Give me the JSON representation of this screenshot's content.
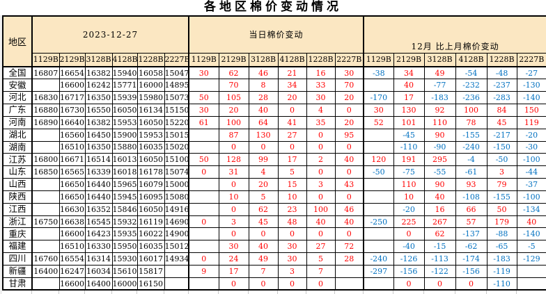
{
  "title": "各地区棉价变动情况",
  "header": {
    "region_label": "地区",
    "groups": [
      "2023-12-27",
      "当日棉价变动",
      "12月 比上月棉价变动"
    ],
    "grades": [
      "1129B",
      "2129B",
      "3128B",
      "4128B",
      "1228B",
      "2227B"
    ]
  },
  "colors": {
    "header_bg": "#fbe7c2",
    "positive": "#ff0000",
    "negative": "#0070c0",
    "border": "#000000"
  },
  "rows": [
    {
      "region": "全国",
      "price": [
        "16807",
        "16654",
        "16382",
        "15940",
        "16058",
        "15047"
      ],
      "daily": [
        "30",
        "62",
        "46",
        "21",
        "16",
        "30"
      ],
      "monthly": [
        "-38",
        "34",
        "49",
        "-54",
        "-48",
        "-27"
      ]
    },
    {
      "region": "安徽",
      "price": [
        "",
        "16600",
        "16242",
        "15771",
        "16000",
        "14895"
      ],
      "daily": [
        "",
        "70",
        "8",
        "34",
        "33",
        "70"
      ],
      "monthly": [
        "",
        "40",
        "-77",
        "-232",
        "-237",
        "-130"
      ]
    },
    {
      "region": "河北",
      "price": [
        "16830",
        "16717",
        "16350",
        "15939",
        "15980",
        "15073"
      ],
      "daily": [
        "50",
        "105",
        "28",
        "20",
        "30",
        "20"
      ],
      "monthly": [
        "-170",
        "17",
        "-183",
        "-236",
        "-283",
        "-140"
      ]
    },
    {
      "region": "广东",
      "price": [
        "16880",
        "16730",
        "16550",
        "16050",
        "16134",
        "15150"
      ],
      "daily": [
        "30",
        "20",
        "40",
        "0",
        "4",
        "0"
      ],
      "monthly": [
        "30",
        "130",
        "92",
        "100",
        "84",
        "150"
      ]
    },
    {
      "region": "河南",
      "price": [
        "16890",
        "16640",
        "16382",
        "15953",
        "16050",
        "15220"
      ],
      "daily": [
        "61",
        "100",
        "64",
        "41",
        "35",
        "20"
      ],
      "monthly": [
        "52",
        "101",
        "110",
        "78",
        "45",
        "119"
      ]
    },
    {
      "region": "湖北",
      "price": [
        "",
        "16560",
        "16450",
        "15900",
        "15953",
        "15015"
      ],
      "daily": [
        "",
        "87",
        "130",
        "27",
        "0",
        "95"
      ],
      "monthly": [
        "",
        "-45",
        "90",
        "-155",
        "-217",
        "-20"
      ]
    },
    {
      "region": "湖南",
      "price": [
        "",
        "16510",
        "16350",
        "15880",
        "16035",
        "15020"
      ],
      "daily": [
        "",
        "0",
        "0",
        "0",
        "0",
        "0"
      ],
      "monthly": [
        "",
        "-110",
        "-90",
        "-240",
        "-150",
        "-30"
      ]
    },
    {
      "region": "江苏",
      "price": [
        "16800",
        "16671",
        "16514",
        "16013",
        "16050",
        "15100"
      ],
      "daily": [
        "50",
        "128",
        "99",
        "17",
        "2",
        "40"
      ],
      "monthly": [
        "120",
        "191",
        "295",
        "-4",
        "-50",
        "-100"
      ]
    },
    {
      "region": "山东",
      "price": [
        "16850",
        "16565",
        "16339",
        "16018",
        "16178",
        "15074"
      ],
      "daily": [
        "0",
        "31",
        "4",
        "5",
        "0",
        "0"
      ],
      "monthly": [
        "-50",
        "-75",
        "-55",
        "-61",
        "3",
        "-44"
      ]
    },
    {
      "region": "山西",
      "price": [
        "",
        "16650",
        "16440",
        "15965",
        "16079",
        "15000"
      ],
      "daily": [
        "",
        "0",
        "20",
        "15",
        "3",
        "43"
      ],
      "monthly": [
        "",
        "110",
        "90",
        "93",
        "79",
        "-37"
      ]
    },
    {
      "region": "陕西",
      "price": [
        "",
        "16650",
        "16440",
        "15945",
        "16095",
        "15080"
      ],
      "daily": [
        "",
        "10",
        "5",
        "10",
        "0",
        "0"
      ],
      "monthly": [
        "",
        "10",
        "40",
        "-108",
        "-155",
        "-100"
      ]
    },
    {
      "region": "江西",
      "price": [
        "",
        "16630",
        "16352",
        "15846",
        "16050",
        "14916"
      ],
      "daily": [
        "",
        "0",
        "62",
        "23",
        "100",
        "46"
      ],
      "monthly": [
        "",
        "-20",
        "16",
        "66",
        "50",
        "-134"
      ]
    },
    {
      "region": "浙江",
      "price": [
        "16750",
        "16638",
        "16545",
        "15932",
        "16119",
        "14690"
      ],
      "daily": [
        "0",
        "3",
        "45",
        "48",
        "40",
        "40"
      ],
      "monthly": [
        "-250",
        "225",
        "267",
        "57",
        "179",
        "40"
      ]
    },
    {
      "region": "重庆",
      "price": [
        "",
        "16600",
        "16423",
        "15935",
        "16022",
        "14900"
      ],
      "daily": [
        "",
        "0",
        "0",
        "0",
        "0",
        "0"
      ],
      "monthly": [
        "",
        "0",
        "62",
        "-137",
        "-88",
        "-140"
      ]
    },
    {
      "region": "福建",
      "price": [
        "",
        "16510",
        "16330",
        "15950",
        "16035",
        "15012"
      ],
      "daily": [
        "",
        "30",
        "40",
        "30",
        "27",
        "72"
      ],
      "monthly": [
        "",
        "-40",
        "-15",
        "-62",
        "-65",
        "-5"
      ]
    },
    {
      "region": "四川",
      "price": [
        "16760",
        "16554",
        "16314",
        "15930",
        "16017",
        "14934"
      ],
      "daily": [
        "0",
        "24",
        "49",
        "30",
        "5",
        "28"
      ],
      "monthly": [
        "-240",
        "-126",
        "-113",
        "-174",
        "-183",
        "-129"
      ]
    },
    {
      "region": "新疆",
      "price": [
        "16400",
        "16247",
        "16034",
        "15610",
        "15817",
        ""
      ],
      "daily": [
        "9",
        "17",
        "7",
        "3",
        "7",
        ""
      ],
      "monthly": [
        "-297",
        "-156",
        "-122",
        "-156",
        "-119",
        ""
      ]
    },
    {
      "region": "甘肃",
      "price": [
        "",
        "16600",
        "16400",
        "16000",
        "16150",
        ""
      ],
      "daily": [
        "",
        "0",
        "0",
        "0",
        "0",
        ""
      ],
      "monthly": [
        "",
        "0",
        "0",
        "0",
        "-110",
        ""
      ]
    }
  ]
}
